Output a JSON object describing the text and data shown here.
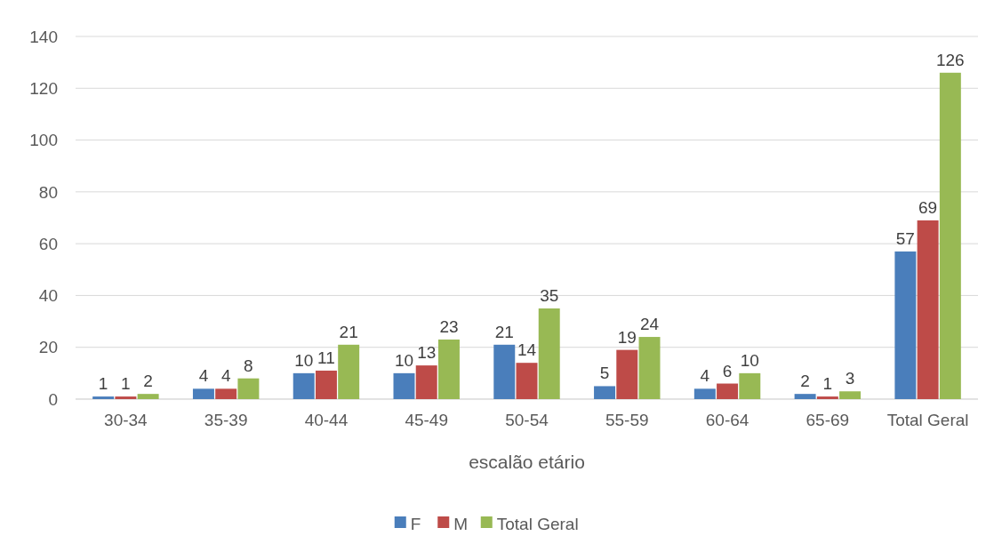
{
  "chart_data": {
    "type": "bar",
    "xlabel": "escalão etário",
    "categories": [
      "30-34",
      "35-39",
      "40-44",
      "45-49",
      "50-54",
      "55-59",
      "60-64",
      "65-69",
      "Total Geral"
    ],
    "series": [
      {
        "name": "F",
        "color": "#4a7ebb",
        "values": [
          1,
          4,
          10,
          10,
          21,
          5,
          4,
          2,
          57
        ]
      },
      {
        "name": "M",
        "color": "#be4b48",
        "values": [
          1,
          4,
          11,
          13,
          14,
          19,
          6,
          1,
          69
        ]
      },
      {
        "name": "Total Geral",
        "color": "#98b954",
        "values": [
          2,
          8,
          21,
          23,
          35,
          24,
          10,
          3,
          126
        ]
      }
    ],
    "ylim": [
      0,
      140
    ],
    "yticks": [
      0,
      20,
      40,
      60,
      80,
      100,
      120,
      140
    ],
    "grid": "y",
    "legend": "bottom",
    "data_labels": true
  }
}
